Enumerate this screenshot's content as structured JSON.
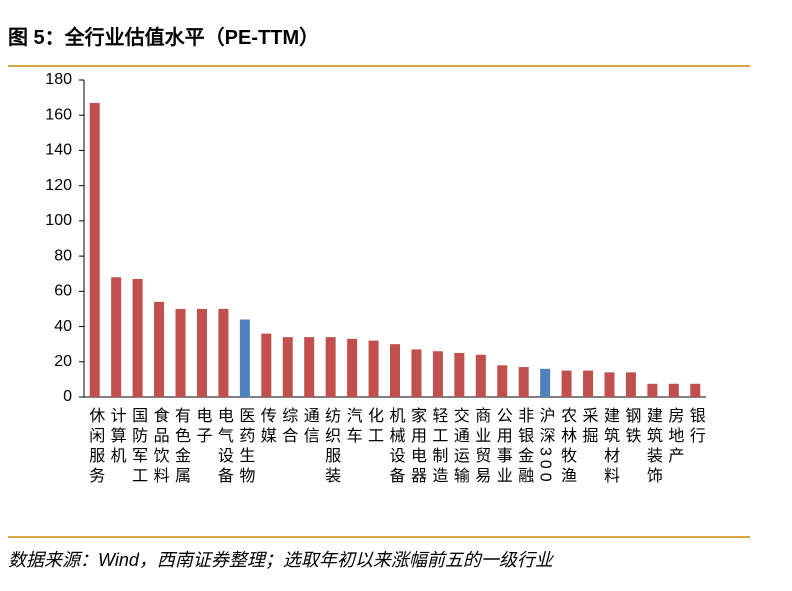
{
  "title": "图 5：全行业估值水平（PE-TTM）",
  "source": "数据来源：Wind，西南证券整理；选取年初以来涨幅前五的一级行业",
  "chart_data": {
    "type": "bar",
    "categories": [
      "休闲服务",
      "计算机",
      "国防军工",
      "食品饮料",
      "有色金属",
      "电子",
      "电气设备",
      "医药生物",
      "传媒",
      "综合",
      "通信",
      "纺织服装",
      "汽车",
      "化工",
      "机械设备",
      "家用电器",
      "轻工制造",
      "交通运输",
      "商业贸易",
      "公用事业",
      "非银金融",
      "沪深300",
      "农林牧渔",
      "采掘",
      "建筑材料",
      "钢铁",
      "建筑装饰",
      "房地产",
      "银行"
    ],
    "values": [
      167,
      68,
      67,
      54,
      50,
      50,
      50,
      44,
      36,
      34,
      34,
      34,
      33,
      32,
      30,
      27,
      26,
      25,
      24,
      18,
      17,
      16,
      15,
      15,
      14,
      14,
      7.5,
      7.5,
      7.5
    ],
    "colors": [
      "#c0504d",
      "#c0504d",
      "#c0504d",
      "#c0504d",
      "#c0504d",
      "#c0504d",
      "#c0504d",
      "#4f81bd",
      "#c0504d",
      "#c0504d",
      "#c0504d",
      "#c0504d",
      "#c0504d",
      "#c0504d",
      "#c0504d",
      "#c0504d",
      "#c0504d",
      "#c0504d",
      "#c0504d",
      "#c0504d",
      "#c0504d",
      "#4f81bd",
      "#c0504d",
      "#c0504d",
      "#c0504d",
      "#c0504d",
      "#c0504d",
      "#c0504d",
      "#c0504d"
    ],
    "ylim": [
      0,
      180
    ],
    "yticks": [
      0,
      20,
      40,
      60,
      80,
      100,
      120,
      140,
      160,
      180
    ],
    "grid": false
  }
}
